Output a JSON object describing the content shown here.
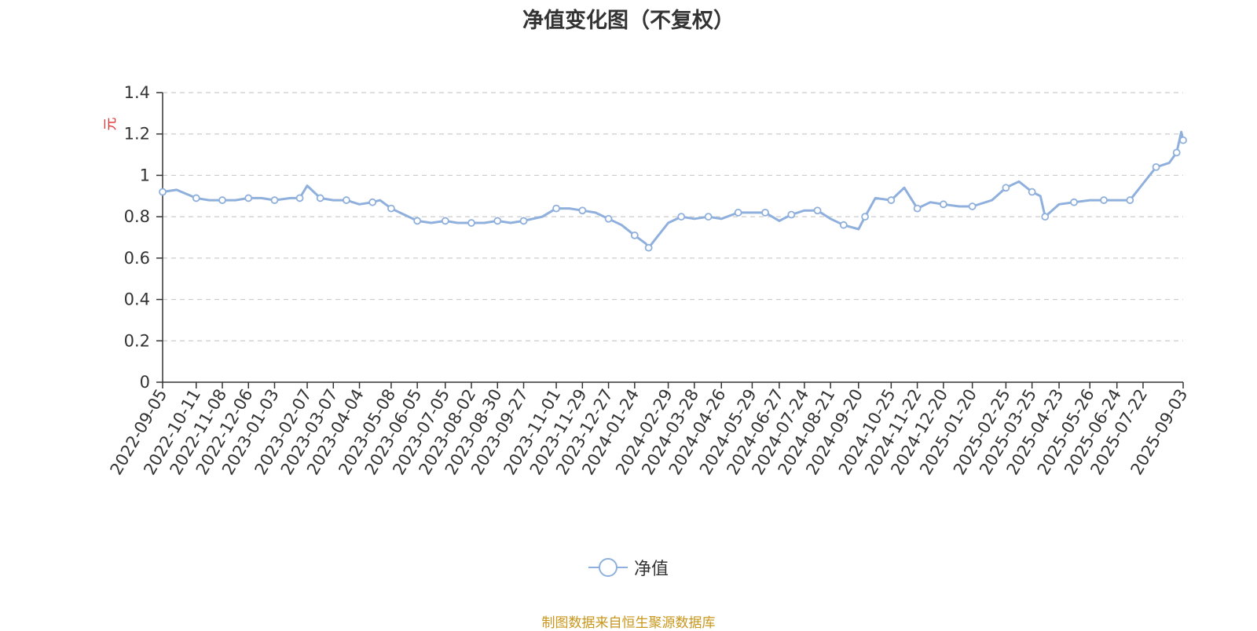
{
  "chart_data": {
    "type": "line",
    "title": "净值变化图（不复权）",
    "ylabel": "元",
    "ylim": [
      0,
      1.4
    ],
    "yticks": [
      0,
      0.2,
      0.4,
      0.6,
      0.8,
      1,
      1.2,
      1.4
    ],
    "ytick_labels": [
      "0",
      "0.2",
      "0.4",
      "0.6",
      "0.8",
      "1",
      "1.2",
      "1.4"
    ],
    "grid": true,
    "legend_position": "bottom",
    "x_tick_labels": [
      "2022-09-05",
      "2022-10-11",
      "2022-11-08",
      "2022-12-06",
      "2023-01-03",
      "2023-02-07",
      "2023-03-07",
      "2023-04-04",
      "2023-05-08",
      "2023-06-05",
      "2023-07-05",
      "2023-08-02",
      "2023-08-30",
      "2023-09-27",
      "2023-11-01",
      "2023-11-29",
      "2023-12-27",
      "2024-01-24",
      "2024-02-29",
      "2024-03-28",
      "2024-04-26",
      "2024-05-29",
      "2024-06-27",
      "2024-07-24",
      "2024-08-21",
      "2024-09-20",
      "2024-10-25",
      "2024-11-22",
      "2024-12-20",
      "2025-01-20",
      "2025-02-25",
      "2025-03-25",
      "2025-04-23",
      "2025-05-26",
      "2025-06-24",
      "2025-07-22",
      "2025-09-03"
    ],
    "series": [
      {
        "name": "净值",
        "color": "#8fb0dc",
        "x": [
          "2022-09-05",
          "2022-09-20",
          "2022-10-11",
          "2022-10-25",
          "2022-11-08",
          "2022-11-22",
          "2022-12-06",
          "2022-12-20",
          "2023-01-03",
          "2023-01-20",
          "2023-01-30",
          "2023-02-07",
          "2023-02-21",
          "2023-03-07",
          "2023-03-21",
          "2023-04-04",
          "2023-04-18",
          "2023-04-26",
          "2023-05-08",
          "2023-05-22",
          "2023-06-05",
          "2023-06-20",
          "2023-07-05",
          "2023-07-18",
          "2023-08-02",
          "2023-08-16",
          "2023-08-30",
          "2023-09-13",
          "2023-09-27",
          "2023-10-17",
          "2023-11-01",
          "2023-11-15",
          "2023-11-29",
          "2023-12-13",
          "2023-12-27",
          "2024-01-10",
          "2024-01-24",
          "2024-02-05",
          "2024-02-08",
          "2024-02-29",
          "2024-03-14",
          "2024-03-28",
          "2024-04-12",
          "2024-04-26",
          "2024-05-14",
          "2024-05-29",
          "2024-06-12",
          "2024-06-27",
          "2024-07-10",
          "2024-07-24",
          "2024-08-07",
          "2024-08-21",
          "2024-09-04",
          "2024-09-20",
          "2024-09-27",
          "2024-10-08",
          "2024-10-25",
          "2024-11-08",
          "2024-11-22",
          "2024-12-06",
          "2024-12-20",
          "2025-01-06",
          "2025-01-20",
          "2025-02-10",
          "2025-02-25",
          "2025-03-11",
          "2025-03-25",
          "2025-04-03",
          "2025-04-08",
          "2025-04-23",
          "2025-05-09",
          "2025-05-26",
          "2025-06-10",
          "2025-06-24",
          "2025-07-08",
          "2025-07-22",
          "2025-08-05",
          "2025-08-19",
          "2025-08-27",
          "2025-09-01",
          "2025-09-03"
        ],
        "y": [
          0.92,
          0.93,
          0.89,
          0.88,
          0.88,
          0.88,
          0.89,
          0.89,
          0.88,
          0.89,
          0.89,
          0.95,
          0.89,
          0.88,
          0.88,
          0.86,
          0.87,
          0.88,
          0.84,
          0.81,
          0.78,
          0.77,
          0.78,
          0.77,
          0.77,
          0.77,
          0.78,
          0.77,
          0.78,
          0.8,
          0.84,
          0.84,
          0.83,
          0.82,
          0.79,
          0.76,
          0.71,
          0.67,
          0.65,
          0.77,
          0.8,
          0.79,
          0.8,
          0.79,
          0.82,
          0.82,
          0.82,
          0.78,
          0.81,
          0.83,
          0.83,
          0.79,
          0.76,
          0.74,
          0.8,
          0.89,
          0.88,
          0.94,
          0.84,
          0.87,
          0.86,
          0.85,
          0.85,
          0.88,
          0.94,
          0.97,
          0.92,
          0.9,
          0.8,
          0.86,
          0.87,
          0.88,
          0.88,
          0.88,
          0.88,
          0.96,
          1.04,
          1.06,
          1.11,
          1.21,
          1.17
        ]
      }
    ],
    "source_note": "制图数据来自恒生聚源数据库"
  }
}
